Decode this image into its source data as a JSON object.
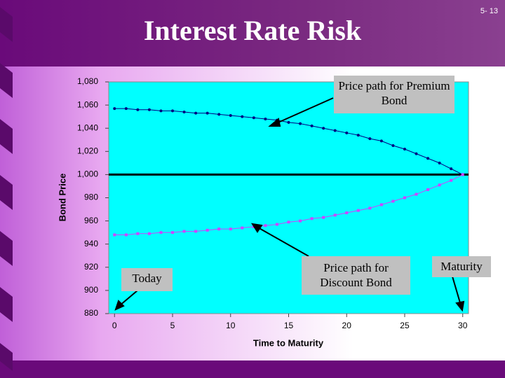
{
  "slide_number": "5- 13",
  "chart_data": {
    "type": "line",
    "title": "Interest Rate Risk",
    "x_label": "Time to Maturity",
    "y_label": "Bond Price",
    "x": [
      0,
      1,
      2,
      3,
      4,
      5,
      6,
      7,
      8,
      9,
      10,
      11,
      12,
      13,
      14,
      15,
      16,
      17,
      18,
      19,
      20,
      21,
      22,
      23,
      24,
      25,
      26,
      27,
      28,
      29,
      30
    ],
    "series": [
      {
        "name": "Premium Bond",
        "color": "#000080",
        "marker": "circle",
        "values": [
          1057,
          1057,
          1056,
          1056,
          1055,
          1055,
          1054,
          1053,
          1053,
          1052,
          1051,
          1050,
          1049,
          1048,
          1047,
          1045,
          1044,
          1042,
          1040,
          1038,
          1036,
          1034,
          1031,
          1029,
          1025,
          1022,
          1018,
          1014,
          1010,
          1005,
          1000
        ]
      },
      {
        "name": "Discount Bond",
        "color": "#cc44ff",
        "marker": "square",
        "values": [
          948,
          948,
          949,
          949,
          950,
          950,
          951,
          951,
          952,
          953,
          953,
          954,
          955,
          956,
          957,
          959,
          960,
          962,
          963,
          965,
          967,
          969,
          971,
          974,
          977,
          980,
          983,
          987,
          991,
          995,
          1000
        ]
      }
    ],
    "hline": 1000,
    "xlim": [
      -0.5,
      30.5
    ],
    "xticks": [
      0,
      5,
      10,
      15,
      20,
      25,
      30
    ],
    "ylim": [
      880,
      1080
    ],
    "yticks": [
      880,
      900,
      920,
      940,
      960,
      980,
      {
        "value": 1000,
        "label": "1,000"
      },
      {
        "value": 1020,
        "label": "1,020"
      },
      {
        "value": 1040,
        "label": "1,040"
      },
      {
        "value": 1060,
        "label": "1,060"
      },
      {
        "value": 1080,
        "label": "1,080"
      }
    ],
    "grid": false,
    "background": "#00ffff",
    "annotations": [
      {
        "text": "Price path for Premium Bond"
      },
      {
        "text": "Price path for Discount Bond"
      },
      {
        "text": "Today"
      },
      {
        "text": "Maturity"
      }
    ]
  }
}
